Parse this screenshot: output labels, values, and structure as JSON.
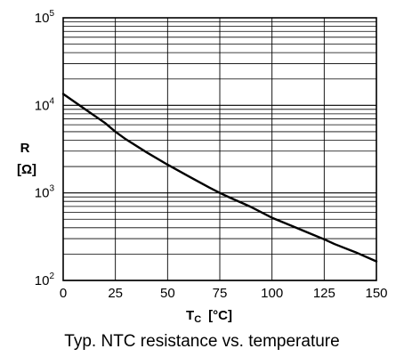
{
  "chart_data": {
    "type": "line",
    "caption": "Typ. NTC resistance vs. temperature",
    "xlabel_main": "T",
    "xlabel_sub": "C",
    "xlabel_unit": "[°C]",
    "ylabel_main": "R",
    "ylabel_unit": "[Ω]",
    "xlim": [
      0,
      150
    ],
    "ylim": [
      100,
      100000
    ],
    "y_scale": "log",
    "grid": true,
    "x_ticks": [
      0,
      25,
      50,
      75,
      100,
      125,
      150
    ],
    "x_tick_labels": [
      "0",
      "25",
      "50",
      "75",
      "100",
      "125",
      "150"
    ],
    "y_ticks": [
      100,
      1000,
      10000,
      100000
    ],
    "y_tick_labels": [
      {
        "base": "10",
        "exp": "2"
      },
      {
        "base": "10",
        "exp": "3"
      },
      {
        "base": "10",
        "exp": "4"
      },
      {
        "base": "10",
        "exp": "5"
      }
    ],
    "series": [
      {
        "x": [
          0,
          10,
          20,
          25,
          30,
          40,
          50,
          60,
          70,
          75,
          80,
          90,
          100,
          110,
          120,
          125,
          130,
          140,
          150
        ],
        "y": [
          13500,
          9200,
          6300,
          5000,
          4100,
          2900,
          2100,
          1550,
          1150,
          1000,
          880,
          690,
          520,
          415,
          330,
          295,
          260,
          210,
          165
        ]
      }
    ],
    "colors": {
      "line": "#000000",
      "grid": "#000000",
      "background": "#ffffff"
    }
  }
}
